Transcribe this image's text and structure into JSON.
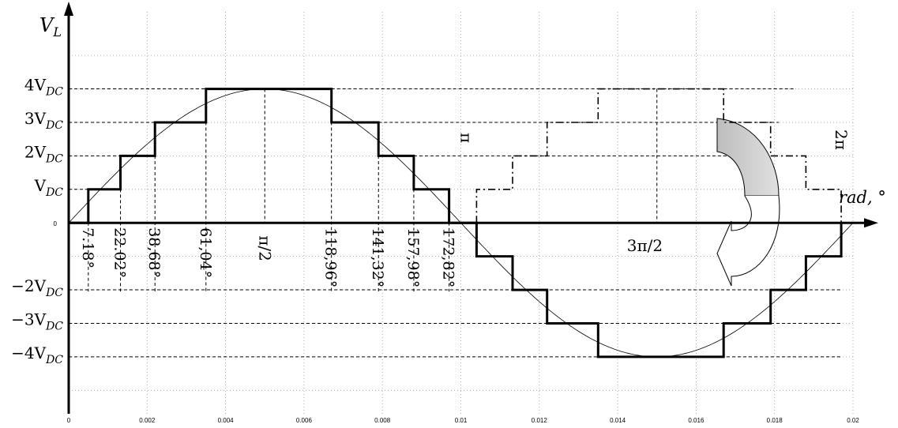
{
  "chart_data": {
    "type": "line",
    "title": "",
    "ylabel": "V_L",
    "xlabel": "rad, °",
    "xlim": [
      0,
      0.02
    ],
    "ylim": [
      -5.7,
      6.3
    ],
    "grid": true,
    "x_ticks": [
      "0",
      "0.002",
      "0.004",
      "0.006",
      "0.008",
      "0.01",
      "0.012",
      "0.014",
      "0.016",
      "0.018",
      "0.02"
    ],
    "y_labels": [
      {
        "base": "4V",
        "sub": "DC",
        "level": 4
      },
      {
        "base": "3V",
        "sub": "DC",
        "level": 3
      },
      {
        "base": "2V",
        "sub": "DC",
        "level": 2
      },
      {
        "base": "V",
        "sub": "DC",
        "level": 1
      },
      {
        "base": "0",
        "sub": "",
        "level": 0
      },
      {
        "base": "−2V",
        "sub": "DC",
        "level": -2
      },
      {
        "base": "−3V",
        "sub": "DC",
        "level": -3
      },
      {
        "base": "−4V",
        "sub": "DC",
        "level": -4
      }
    ],
    "switching_angles": [
      {
        "label": "7.18°",
        "t": 0.0005
      },
      {
        "label": "22.02°",
        "t": 0.00132
      },
      {
        "label": "38,68°",
        "t": 0.0022
      },
      {
        "label": "61,04°",
        "t": 0.0035
      },
      {
        "label": "118,96°",
        "t": 0.0067
      },
      {
        "label": "141,32°",
        "t": 0.0079
      },
      {
        "label": "157,98°",
        "t": 0.0088
      },
      {
        "label": "172,82°",
        "t": 0.0097
      }
    ],
    "special_labels": [
      {
        "text": "π/2",
        "t": 0.005,
        "rotated": true
      },
      {
        "text": "3π/2",
        "t": 0.015,
        "rotated": false
      },
      {
        "text": "π",
        "t": 0.0104,
        "rotated": true
      },
      {
        "text": "2π",
        "t": 0.0197,
        "rotated": true
      }
    ],
    "series": [
      {
        "style": "solid",
        "t": [
          0.0005,
          0.00132,
          0.0022,
          0.0035,
          0.0067,
          0.0079,
          0.0088,
          0.0097,
          0.0104,
          0.01132,
          0.0122,
          0.0135,
          0.0167,
          0.0179,
          0.0188,
          0.0197
        ],
        "levels": [
          0,
          1,
          2,
          3,
          4,
          3,
          2,
          1,
          0,
          -1,
          -2,
          -3,
          -4,
          -3,
          -2,
          -1,
          0
        ]
      },
      {
        "style": "dashdot",
        "t": [
          0.0104,
          0.01132,
          0.0122,
          0.0135,
          0.0167,
          0.0179,
          0.0188,
          0.0197
        ],
        "levels": [
          1,
          2,
          3,
          4,
          3,
          2,
          1,
          0
        ]
      },
      {
        "style": "sine",
        "amplitude": 4,
        "period": 0.02
      }
    ]
  }
}
